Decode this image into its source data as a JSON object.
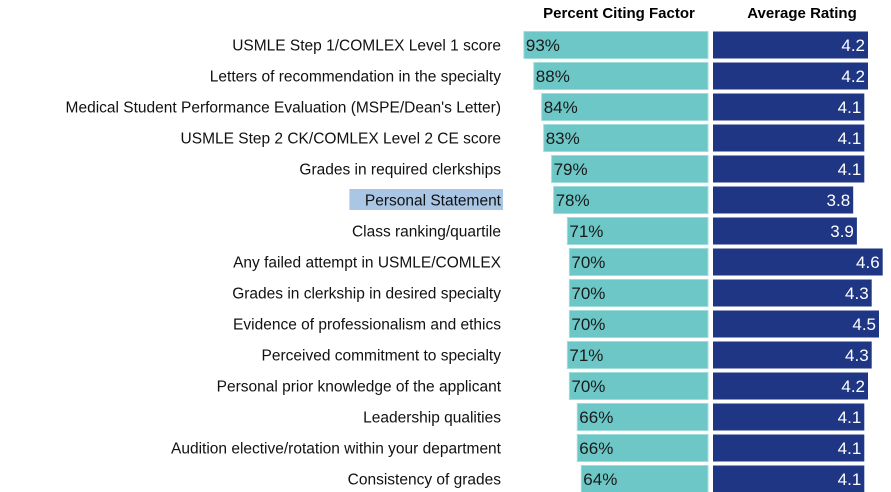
{
  "chart_data": {
    "type": "bar",
    "title": "",
    "highlighted_category": "Personal Statement",
    "colors": {
      "percent": "#6cc7c6",
      "percent_border": "#9fdcdb",
      "rating": "#1f3685",
      "highlight": "#a9c6e4"
    },
    "percent_axis": {
      "header": "Percent Citing Factor",
      "xlim": [
        0,
        100
      ],
      "align": "right"
    },
    "rating_axis": {
      "header": "Average Rating",
      "xlim": [
        0,
        4.6
      ],
      "align": "left"
    },
    "categories": [
      "USMLE Step 1/COMLEX Level 1 score",
      "Letters of recommendation in the specialty",
      "Medical Student Performance Evaluation (MSPE/Dean's Letter)",
      "USMLE Step 2 CK/COMLEX Level 2 CE score",
      "Grades in required clerkships",
      "Personal Statement",
      "Class ranking/quartile",
      "Any failed attempt in USMLE/COMLEX",
      "Grades in clerkship in desired specialty",
      "Evidence of professionalism and ethics",
      "Perceived commitment to specialty",
      "Personal prior knowledge of the applicant",
      "Leadership qualities",
      "Audition elective/rotation within your department",
      "Consistency of grades"
    ],
    "series": [
      {
        "name": "Percent Citing Factor",
        "values": [
          93,
          88,
          84,
          83,
          79,
          78,
          71,
          70,
          70,
          70,
          71,
          70,
          66,
          66,
          64
        ],
        "labels": [
          "93%",
          "88%",
          "84%",
          "83%",
          "79%",
          "78%",
          "71%",
          "70%",
          "70%",
          "70%",
          "71%",
          "70%",
          "66%",
          "66%",
          "64%"
        ]
      },
      {
        "name": "Average Rating",
        "values": [
          4.2,
          4.2,
          4.1,
          4.1,
          4.1,
          3.8,
          3.9,
          4.6,
          4.3,
          4.5,
          4.3,
          4.2,
          4.1,
          4.1,
          4.1
        ],
        "labels": [
          "4.2",
          "4.2",
          "4.1",
          "4.1",
          "4.1",
          "3.8",
          "3.9",
          "4.6",
          "4.3",
          "4.5",
          "4.3",
          "4.2",
          "4.1",
          "4.1",
          "4.1"
        ]
      }
    ]
  }
}
